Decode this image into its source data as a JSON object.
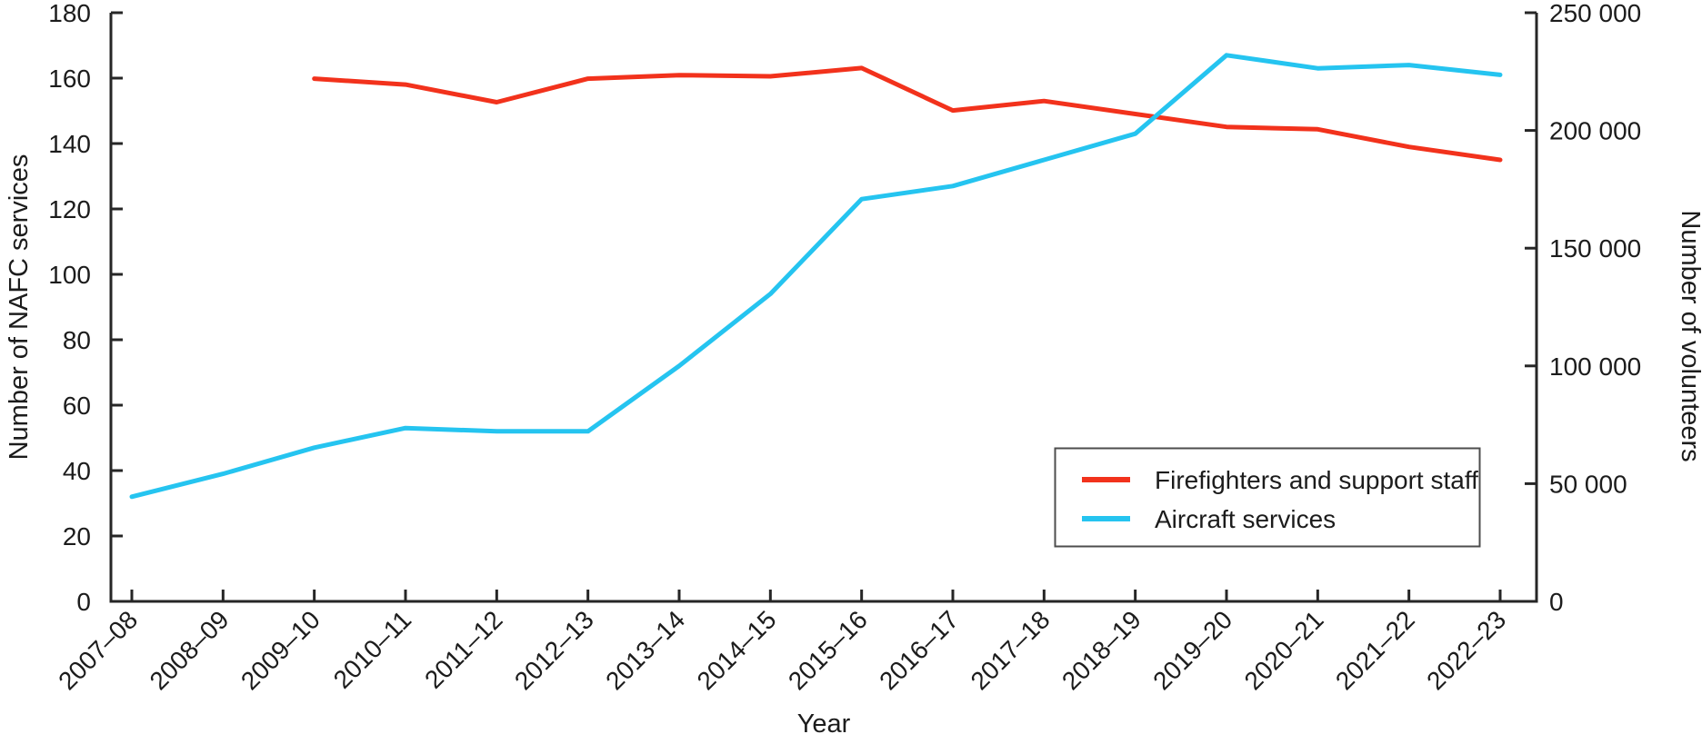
{
  "chart_data": {
    "type": "line",
    "title": "",
    "categories": [
      "2007–08",
      "2008–09",
      "2009–10",
      "2010–11",
      "2011–12",
      "2012–13",
      "2013–14",
      "2014–15",
      "2015–16",
      "2016–17",
      "2017–18",
      "2018–19",
      "2019–20",
      "2020–21",
      "2021–22",
      "2022–23"
    ],
    "series": [
      {
        "name": "Firefighters and support staff",
        "axis": "right",
        "color": "#F2321C",
        "start_index": 2,
        "values": [
          222000,
          219500,
          212000,
          222000,
          223500,
          223000,
          226500,
          208500,
          212500,
          207000,
          201500,
          200500,
          193000,
          187500
        ]
      },
      {
        "name": "Aircraft services",
        "axis": "left",
        "color": "#25C4F0",
        "start_index": 0,
        "values": [
          32,
          39,
          47,
          53,
          52,
          52,
          72,
          94,
          123,
          127,
          135,
          143,
          167,
          163,
          164,
          161
        ]
      }
    ],
    "left_axis": {
      "label": "Number of NAFC services",
      "min": 0,
      "max": 180,
      "tick_values": [
        0,
        20,
        40,
        60,
        80,
        100,
        120,
        140,
        160,
        180
      ],
      "tick_labels": [
        "0",
        "20",
        "40",
        "60",
        "80",
        "100",
        "120",
        "140",
        "160",
        "180"
      ]
    },
    "right_axis": {
      "label": "Number of volunteers",
      "min": 0,
      "max": 250000,
      "tick_values": [
        0,
        50000,
        100000,
        150000,
        200000,
        250000
      ],
      "tick_labels": [
        "0",
        "50 000",
        "100 000",
        "150 000",
        "200 000",
        "250 000"
      ]
    },
    "x_axis": {
      "label": "Year"
    },
    "legend": {
      "position": "lower-right",
      "entries": [
        "Firefighters and support staff",
        "Aircraft services"
      ]
    },
    "grid": false,
    "colors": {
      "text": "#1c1c1c",
      "axis": "#262626",
      "legend_border": "#4d4d4d",
      "background": "#ffffff"
    }
  }
}
